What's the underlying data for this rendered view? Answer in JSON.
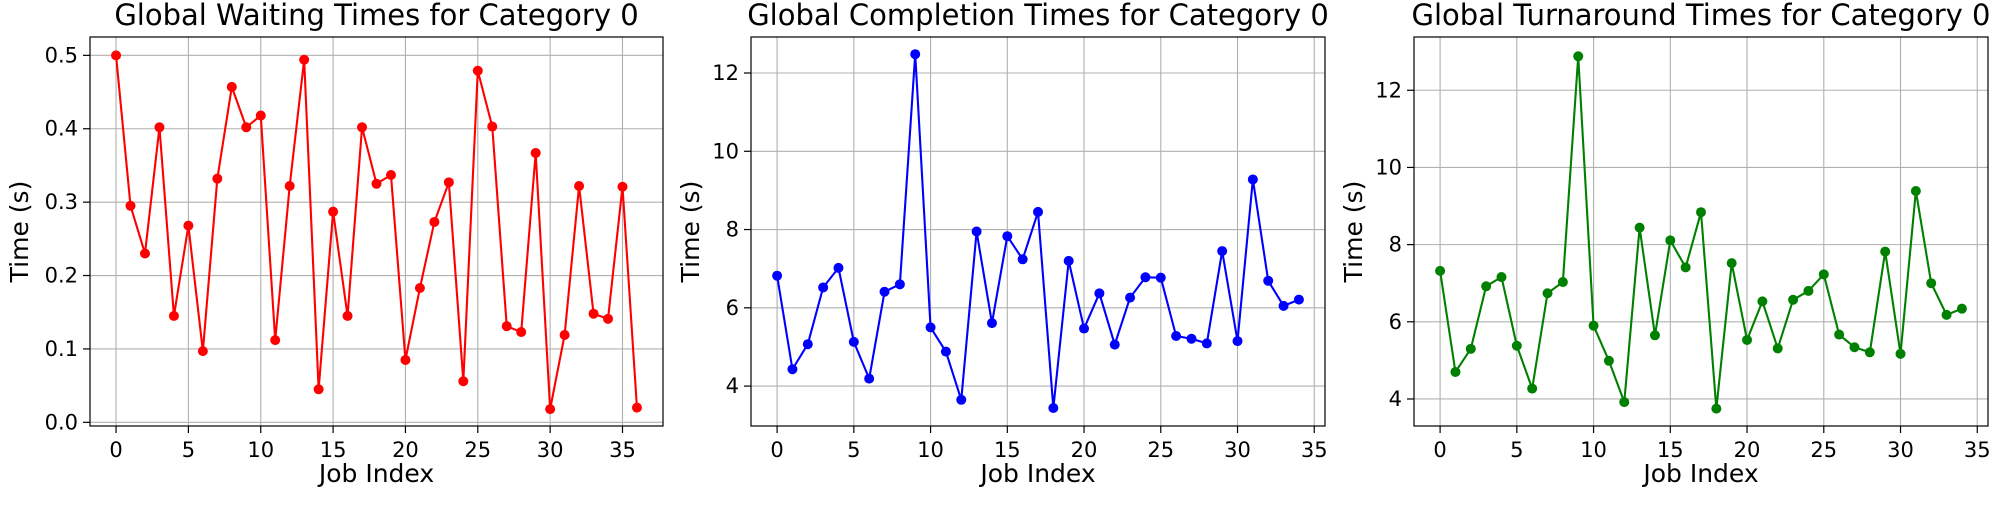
{
  "chart_data": [
    {
      "type": "line",
      "title": "Global Waiting Times for Category 0",
      "xlabel": "Job Index",
      "ylabel": "Time (s)",
      "color": "#ff0000",
      "marker": "circle",
      "grid": true,
      "xlim": [
        -1.8,
        37.8
      ],
      "ylim": [
        -0.005,
        0.525
      ],
      "xticks": [
        0,
        5,
        10,
        15,
        20,
        25,
        30,
        35
      ],
      "yticks": [
        0.0,
        0.1,
        0.2,
        0.3,
        0.4,
        0.5
      ],
      "ytick_labels": [
        "0.0",
        "0.1",
        "0.2",
        "0.3",
        "0.4",
        "0.5"
      ],
      "x": [
        0,
        1,
        2,
        3,
        4,
        5,
        6,
        7,
        8,
        9,
        10,
        11,
        12,
        13,
        14,
        15,
        16,
        17,
        18,
        19,
        20,
        21,
        22,
        23,
        24,
        25,
        26,
        27,
        28,
        29,
        30,
        31,
        32,
        33,
        34,
        35,
        36
      ],
      "values": [
        0.5,
        0.295,
        0.23,
        0.402,
        0.145,
        0.268,
        0.097,
        0.332,
        0.457,
        0.402,
        0.418,
        0.112,
        0.322,
        0.494,
        0.045,
        0.287,
        0.145,
        0.402,
        0.325,
        0.337,
        0.085,
        0.183,
        0.273,
        0.327,
        0.056,
        0.479,
        0.403,
        0.131,
        0.123,
        0.367,
        0.018,
        0.119,
        0.322,
        0.148,
        0.141,
        0.321,
        0.02
      ]
    },
    {
      "type": "line",
      "title": "Global Completion Times for Category 0",
      "xlabel": "Job Index",
      "ylabel": "Time (s)",
      "color": "#0000ff",
      "marker": "circle",
      "grid": true,
      "xlim": [
        -1.7,
        35.7
      ],
      "ylim": [
        2.98,
        12.92
      ],
      "xticks": [
        0,
        5,
        10,
        15,
        20,
        25,
        30,
        35
      ],
      "yticks": [
        4,
        6,
        8,
        10,
        12
      ],
      "ytick_labels": [
        "4",
        "6",
        "8",
        "10",
        "12"
      ],
      "x": [
        0,
        1,
        2,
        3,
        4,
        5,
        6,
        7,
        8,
        9,
        10,
        11,
        12,
        13,
        14,
        15,
        16,
        17,
        18,
        19,
        20,
        21,
        22,
        23,
        24,
        25,
        26,
        27,
        28,
        29,
        30,
        31,
        32,
        33,
        34
      ],
      "values": [
        6.82,
        4.43,
        5.07,
        6.52,
        7.02,
        5.13,
        4.19,
        6.41,
        6.6,
        12.48,
        5.5,
        4.88,
        3.65,
        7.95,
        5.61,
        7.83,
        7.24,
        8.45,
        3.44,
        7.2,
        5.47,
        6.37,
        5.06,
        6.26,
        6.78,
        6.77,
        5.28,
        5.21,
        5.09,
        7.45,
        5.15,
        9.28,
        6.69,
        6.05,
        6.21
      ]
    },
    {
      "type": "line",
      "title": "Global Turnaround Times for Category 0",
      "xlabel": "Job Index",
      "ylabel": "Time (s)",
      "color": "#008000",
      "marker": "circle",
      "grid": true,
      "xlim": [
        -1.7,
        35.7
      ],
      "ylim": [
        3.3,
        13.38
      ],
      "xticks": [
        0,
        5,
        10,
        15,
        20,
        25,
        30,
        35
      ],
      "yticks": [
        4,
        6,
        8,
        10,
        12
      ],
      "ytick_labels": [
        "4",
        "6",
        "8",
        "10",
        "12"
      ],
      "x": [
        0,
        1,
        2,
        3,
        4,
        5,
        6,
        7,
        8,
        9,
        10,
        11,
        12,
        13,
        14,
        15,
        16,
        17,
        18,
        19,
        20,
        21,
        22,
        23,
        24,
        25,
        26,
        27,
        28,
        29,
        30,
        31,
        32,
        33,
        34
      ],
      "values": [
        7.32,
        4.7,
        5.3,
        6.92,
        7.16,
        5.38,
        4.27,
        6.74,
        7.03,
        12.88,
        5.9,
        4.99,
        3.92,
        8.44,
        5.65,
        8.11,
        7.41,
        8.84,
        3.75,
        7.52,
        5.53,
        6.53,
        5.31,
        6.57,
        6.8,
        7.23,
        5.67,
        5.34,
        5.21,
        7.82,
        5.17,
        9.39,
        7.0,
        6.18,
        6.34
      ]
    }
  ]
}
